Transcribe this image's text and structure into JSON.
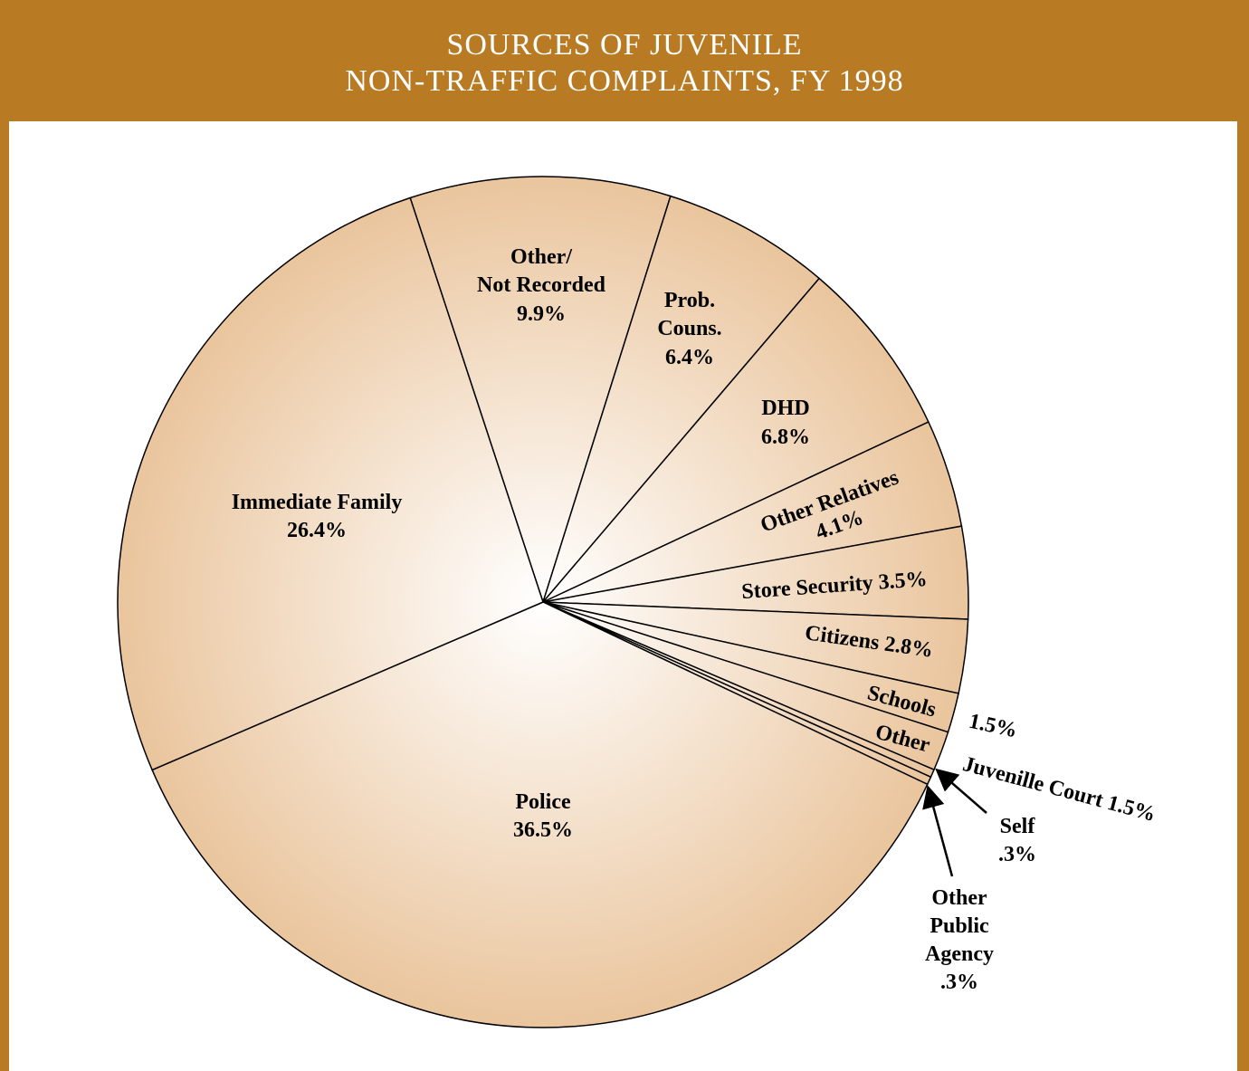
{
  "chart_data": {
    "type": "pie",
    "title": [
      "SOURCES OF JUVENILE",
      "NON-TRAFFIC COMPLAINTS, FY 1998"
    ],
    "categories": [
      [
        "Other/",
        "Not Recorded"
      ],
      [
        "Prob.",
        "Couns."
      ],
      [
        "DHD"
      ],
      [
        "Other Relatives"
      ],
      [
        "Store Security"
      ],
      [
        "Citizens"
      ],
      [
        "Schools"
      ],
      [
        "Other",
        "Juvenille Court"
      ],
      [
        "Self"
      ],
      [
        "Other",
        "Public",
        "Agency"
      ],
      [
        "Police"
      ],
      [
        "Immediate Family"
      ]
    ],
    "values": [
      9.9,
      6.4,
      6.8,
      4.1,
      3.5,
      2.8,
      1.5,
      1.5,
      0.3,
      0.3,
      36.5,
      26.4
    ],
    "value_labels": [
      "9.9%",
      "6.4%",
      "6.8%",
      "4.1%",
      "3.5%",
      "2.8%",
      "1.5%",
      "1.5%",
      ".3%",
      ".3%",
      "36.5%",
      "26.4%"
    ],
    "color": "#eac59d"
  }
}
